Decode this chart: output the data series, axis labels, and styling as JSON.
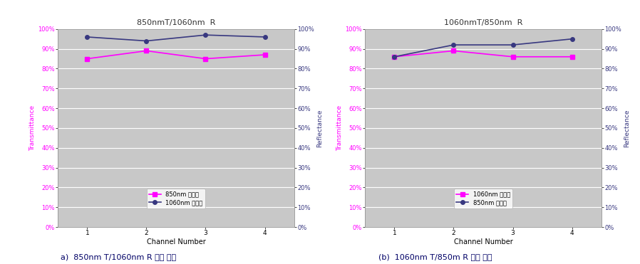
{
  "chart_a": {
    "title": "850nmT/1060nm  R",
    "transmittance_label": "850nm 투과율",
    "reflectance_label": "1060nm 반사율",
    "channels": [
      1,
      2,
      3,
      4
    ],
    "transmittance": [
      85,
      89,
      85,
      87
    ],
    "reflectance": [
      96,
      94,
      97,
      96
    ],
    "trans_color": "#ff00ff",
    "refl_color": "#383880"
  },
  "chart_b": {
    "title": "1060nmT/850nm  R",
    "transmittance_label": "1060nm 투과율",
    "reflectance_label": "850nm 반사율",
    "channels": [
      1,
      2,
      3,
      4
    ],
    "transmittance": [
      86,
      89,
      86,
      86
    ],
    "reflectance": [
      86,
      92,
      92,
      95
    ],
    "trans_color": "#ff00ff",
    "refl_color": "#383880"
  },
  "caption_a": "a)  850nm T/1060nm R 측정 결과",
  "caption_b": "(b)  1060nm T/850m R 측정 결과",
  "bg_color": "#c8c8c8",
  "outer_bg": "#ffffff",
  "ylabel_left": "Transmittance",
  "ylabel_right": "Reflectance",
  "xlabel": "Channel Number",
  "ylim": [
    0,
    100
  ],
  "yticks": [
    0,
    10,
    20,
    30,
    40,
    50,
    60,
    70,
    80,
    90,
    100
  ]
}
